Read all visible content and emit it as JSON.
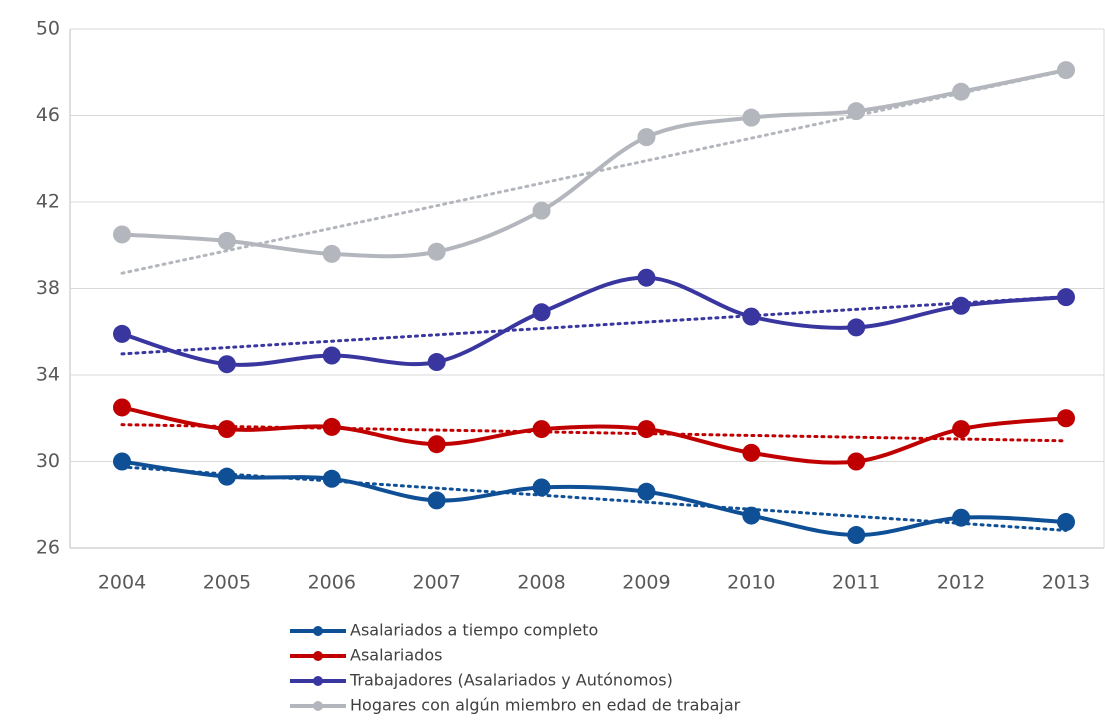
{
  "chart_data": {
    "type": "line",
    "categories": [
      "2004",
      "2005",
      "2006",
      "2007",
      "2008",
      "2009",
      "2010",
      "2011",
      "2012",
      "2013"
    ],
    "series": [
      {
        "name": "Asalariados a tiempo completo",
        "color": "#0f4f96",
        "values": [
          30.0,
          29.3,
          29.2,
          28.2,
          28.8,
          28.6,
          27.5,
          26.6,
          27.4,
          27.2
        ]
      },
      {
        "name": "Asalariados",
        "color": "#c00000",
        "values": [
          32.5,
          31.5,
          31.6,
          30.8,
          31.5,
          31.5,
          30.4,
          30.0,
          31.5,
          32.0
        ]
      },
      {
        "name": "Trabajadores (Asalariados y Autónomos)",
        "color": "#3a36a0",
        "values": [
          35.9,
          34.5,
          34.9,
          34.6,
          36.9,
          38.5,
          36.7,
          36.2,
          37.2,
          37.6
        ]
      },
      {
        "name": "Hogares con algún miembro en edad de trabajar",
        "color": "#b3b6bc",
        "values": [
          40.5,
          40.2,
          39.6,
          39.7,
          41.6,
          45.0,
          45.9,
          46.2,
          47.1,
          48.1
        ]
      }
    ],
    "ylim": [
      26,
      50
    ],
    "yticks": [
      26,
      30,
      34,
      38,
      42,
      46,
      50
    ],
    "grid": true,
    "trendline": true,
    "legend": "bottom"
  }
}
